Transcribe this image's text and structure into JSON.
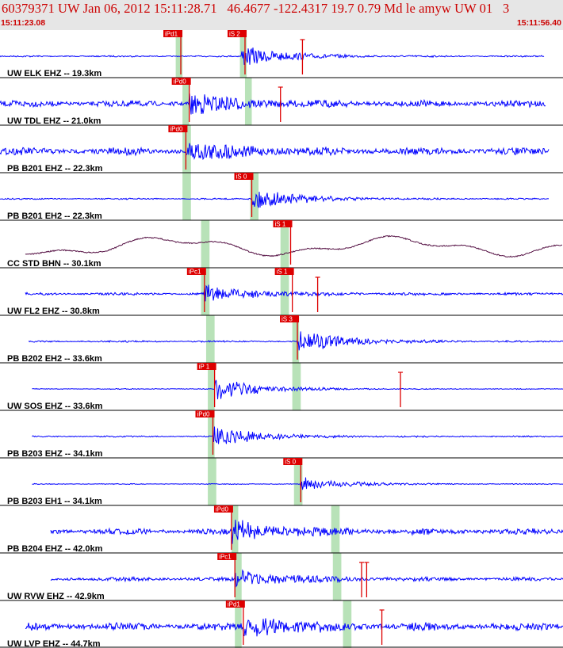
{
  "header": {
    "title": "60379371 UW Jan 06, 2012 15:11:28.71   46.4677 -122.4317 19.7 0.79 Md le amyw UW 01   3",
    "start_time": "15:11:23.08",
    "end_time": "15:11:56.40"
  },
  "colors": {
    "trace": "#0000ff",
    "trace_bhn": "#551144",
    "pick": "#dd0000",
    "window": "#b8e2b8",
    "header_bg": "#e6e6e6",
    "header_text": "#cc0000"
  },
  "chart_data": {
    "type": "line",
    "title": "60379371 UW Jan 06, 2012 15:11:28.71   46.4677 -122.4317 19.7 0.79 Md le amyw UW 01   3",
    "x_range": [
      "15:11:23.08",
      "15:11:56.40"
    ],
    "x_unit": "seconds after 15:11:23.08",
    "x_span_s": 33.32,
    "series": [
      {
        "name": "UW ELK EHZ -- 19.3km",
        "label": "UW ELK EHZ -- 19.3km",
        "data_start": 0,
        "data_end": 32.2,
        "noise": 0.05,
        "burst": 0.9,
        "burst_start": 14.3,
        "bhn": false,
        "picks": [
          {
            "label": "iPd1",
            "t": 10.7
          },
          {
            "label": "iS 2",
            "t": 14.5
          },
          {
            "label": "",
            "t": 17.9
          }
        ],
        "windows": [
          [
            10.4,
            10.8
          ],
          [
            14.2,
            14.6
          ]
        ]
      },
      {
        "name": "UW TDL EHZ -- 21.0km",
        "label": "UW TDL EHZ -- 21.0km",
        "data_start": 0,
        "data_end": 32.3,
        "noise": 0.22,
        "burst": 0.85,
        "burst_start": 11.2,
        "bhn": false,
        "picks": [
          {
            "label": "iPd0",
            "t": 11.2
          },
          {
            "label": "",
            "t": 16.6
          }
        ],
        "windows": [
          [
            10.8,
            11.2
          ],
          [
            14.5,
            14.9
          ]
        ]
      },
      {
        "name": "PB B201 EHZ -- 22.3km",
        "label": "PB B201 EHZ -- 22.3km",
        "data_start": 0,
        "data_end": 32.5,
        "noise": 0.25,
        "burst": 0.9,
        "burst_start": 11.0,
        "bhn": false,
        "picks": [
          {
            "label": "iPd0",
            "t": 11.0
          }
        ],
        "windows": [
          [
            10.8,
            11.3
          ]
        ]
      },
      {
        "name": "PB B201 EH2 -- 22.3km",
        "label": "PB B201 EH2 -- 22.3km",
        "data_start": 0,
        "data_end": 32.5,
        "noise": 0.05,
        "burst": 0.95,
        "burst_start": 14.9,
        "bhn": false,
        "picks": [
          {
            "label": "iS 0",
            "t": 14.9
          }
        ],
        "windows": [
          [
            10.8,
            11.3
          ],
          [
            14.8,
            15.3
          ]
        ]
      },
      {
        "name": "CC STD BHN -- 30.1km",
        "label": "CC STD BHN -- 30.1km",
        "data_start": 1.5,
        "data_end": 33.3,
        "noise": 0.05,
        "burst": 0.1,
        "burst_start": 17.2,
        "bhn": true,
        "picks": [
          {
            "label": "iS 1",
            "t": 17.2
          }
        ],
        "windows": [
          [
            11.9,
            12.4
          ],
          [
            16.6,
            17.1
          ]
        ]
      },
      {
        "name": "UW FL2 EHZ -- 30.8km",
        "label": "UW FL2 EHZ -- 30.8km",
        "data_start": 1.5,
        "data_end": 33.4,
        "noise": 0.09,
        "burst": 0.8,
        "burst_start": 12.1,
        "bhn": false,
        "picks": [
          {
            "label": "iPc1",
            "t": 12.1
          },
          {
            "label": "iS 1",
            "t": 17.3
          },
          {
            "label": "",
            "t": 18.8
          }
        ],
        "windows": [
          [
            11.9,
            12.4
          ],
          [
            16.6,
            17.1
          ]
        ]
      },
      {
        "name": "PB B202 EH2 -- 33.6km",
        "label": "PB B202 EH2 -- 33.6km",
        "data_start": 1.7,
        "data_end": 33.5,
        "noise": 0.06,
        "burst": 0.95,
        "burst_start": 17.6,
        "bhn": false,
        "picks": [
          {
            "label": "iS 3",
            "t": 17.6
          }
        ],
        "windows": [
          [
            12.2,
            12.7
          ],
          [
            17.3,
            17.7
          ]
        ]
      },
      {
        "name": "UW SOS EHZ -- 33.6km",
        "label": "UW SOS EHZ -- 33.6km",
        "data_start": 1.9,
        "data_end": 33.5,
        "noise": 0.03,
        "burst": 0.95,
        "burst_start": 12.7,
        "bhn": false,
        "picks": [
          {
            "label": "iP 1",
            "t": 12.7
          },
          {
            "label": "",
            "t": 23.7
          }
        ],
        "windows": [
          [
            12.3,
            12.7
          ],
          [
            17.3,
            17.8
          ]
        ]
      },
      {
        "name": "PB B203 EHZ -- 34.1km",
        "label": "PB B203 EHZ -- 34.1km",
        "data_start": 1.9,
        "data_end": 33.5,
        "noise": 0.05,
        "burst": 0.9,
        "burst_start": 12.6,
        "bhn": false,
        "picks": [
          {
            "label": "iPd0",
            "t": 12.6
          }
        ],
        "windows": [
          [
            12.3,
            12.7
          ]
        ]
      },
      {
        "name": "PB B203 EH1 -- 34.1km",
        "label": "PB B203 EH1 -- 34.1km",
        "data_start": 1.9,
        "data_end": 33.5,
        "noise": 0.03,
        "burst": 0.6,
        "burst_start": 17.8,
        "bhn": false,
        "picks": [
          {
            "label": "iS 0",
            "t": 17.8
          }
        ],
        "windows": [
          [
            12.3,
            12.8
          ],
          [
            17.4,
            17.9
          ]
        ]
      },
      {
        "name": "PB B204 EHZ -- 42.0km",
        "label": "PB B204 EHZ -- 42.0km",
        "data_start": 3.0,
        "data_end": 33.5,
        "noise": 0.2,
        "burst": 0.95,
        "burst_start": 13.7,
        "bhn": false,
        "picks": [
          {
            "label": "iPd0",
            "t": 13.7
          }
        ],
        "windows": [
          [
            13.7,
            14.1
          ],
          [
            19.6,
            20.1
          ]
        ]
      },
      {
        "name": "UW RVW EHZ -- 42.9km",
        "label": "UW RVW EHZ -- 42.9km",
        "data_start": 3.0,
        "data_end": 33.5,
        "noise": 0.13,
        "burst": 0.85,
        "burst_start": 13.9,
        "bhn": false,
        "picks": [
          {
            "label": "iPc1",
            "t": 13.9
          },
          {
            "label": "",
            "t": 21.7
          },
          {
            "label": "",
            "t": 21.4
          }
        ],
        "windows": [
          [
            13.9,
            14.3
          ],
          [
            19.7,
            20.2
          ]
        ]
      },
      {
        "name": "UW LVP EHZ -- 44.7km",
        "label": "UW LVP EHZ -- 44.7km",
        "data_start": 1.5,
        "data_end": 33.5,
        "noise": 0.25,
        "burst": 0.95,
        "burst_start": 14.4,
        "bhn": false,
        "picks": [
          {
            "label": "iPd1",
            "t": 14.4
          },
          {
            "label": "",
            "t": 22.6
          }
        ],
        "windows": [
          [
            13.9,
            14.3
          ],
          [
            20.3,
            20.8
          ]
        ]
      }
    ]
  }
}
